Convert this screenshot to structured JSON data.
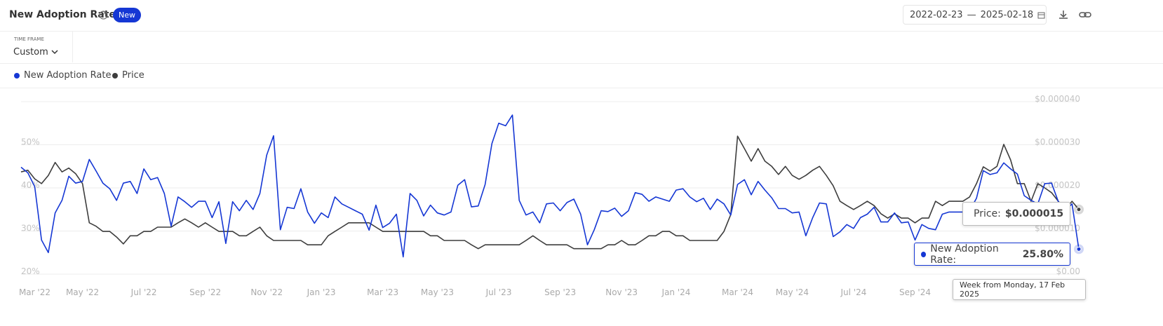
{
  "header": {
    "title": "New Adoption Rate",
    "badge": "New",
    "date_start": "2022-02-23",
    "date_separator": "—",
    "date_end": "2025-02-18"
  },
  "controls": {
    "time_frame_label": "TIME FRAME",
    "time_frame_value": "Custom"
  },
  "tooltip": {
    "price_label": "Price:",
    "price_value": "$0.000015",
    "rate_label": "New Adoption Rate:",
    "rate_value": "25.80%",
    "week": "Week from Monday, 17 Feb 2025"
  },
  "chart_data": {
    "type": "line",
    "legend": "top-left",
    "grid": true,
    "categories": [
      null,
      null,
      "Mar '22",
      null,
      null,
      null,
      null,
      null,
      null,
      "May '22",
      null,
      null,
      null,
      null,
      null,
      null,
      null,
      null,
      "Jul '22",
      null,
      null,
      null,
      null,
      null,
      null,
      null,
      null,
      "Sep '22",
      null,
      null,
      null,
      null,
      null,
      null,
      null,
      null,
      "Nov '22",
      null,
      null,
      null,
      null,
      null,
      null,
      null,
      "Jan '23",
      null,
      null,
      null,
      null,
      null,
      null,
      null,
      null,
      "Mar '23",
      null,
      null,
      null,
      null,
      null,
      null,
      null,
      "May '23",
      null,
      null,
      null,
      null,
      null,
      null,
      null,
      null,
      "Jul '23",
      null,
      null,
      null,
      null,
      null,
      null,
      null,
      null,
      "Sep '23",
      null,
      null,
      null,
      null,
      null,
      null,
      null,
      null,
      "Nov '23",
      null,
      null,
      null,
      null,
      null,
      null,
      null,
      "Jan '24",
      null,
      null,
      null,
      null,
      null,
      null,
      null,
      null,
      "Mar '24",
      null,
      null,
      null,
      null,
      null,
      null,
      null,
      "May '24",
      null,
      null,
      null,
      null,
      null,
      null,
      null,
      null,
      "Jul '24",
      null,
      null,
      null,
      null,
      null,
      null,
      null,
      null,
      "Sep '24",
      null,
      null,
      null,
      null,
      null,
      null,
      null,
      null,
      null,
      null,
      null,
      null,
      null,
      null,
      null,
      null,
      null,
      null,
      null,
      null,
      null,
      null,
      null,
      null
    ],
    "ylim": [
      20,
      60
    ],
    "yticks": [
      {
        "value": 20,
        "label": "20%"
      },
      {
        "value": 30,
        "label": "30%"
      },
      {
        "value": 40,
        "label": "40%"
      },
      {
        "value": 50,
        "label": "50%"
      }
    ],
    "y2lim": [
      0,
      4e-05
    ],
    "y2ticks": [
      {
        "value": 0,
        "label": "$0.00"
      },
      {
        "value": 1e-05,
        "label": "$0.000010"
      },
      {
        "value": 2e-05,
        "label": "$0.000020"
      },
      {
        "value": 3e-05,
        "label": "$0.000030"
      },
      {
        "value": 4e-05,
        "label": "$0.000040"
      }
    ],
    "series": [
      {
        "name": "New Adoption Rate",
        "color": "#1537d4",
        "values": [
          44.8,
          43.5,
          40.3,
          27.9,
          25.0,
          34.2,
          37.1,
          42.7,
          41.1,
          41.5,
          46.6,
          43.9,
          41.1,
          39.8,
          37.1,
          41.1,
          41.5,
          38.7,
          44.4,
          41.9,
          42.4,
          38.7,
          31.1,
          37.9,
          36.8,
          35.5,
          36.9,
          36.9,
          33.1,
          36.8,
          27.1,
          36.8,
          34.7,
          37.1,
          35.0,
          38.7,
          47.6,
          52.1,
          30.3,
          35.5,
          35.2,
          39.8,
          34.4,
          31.8,
          34.2,
          33.1,
          37.9,
          36.3,
          35.5,
          34.7,
          33.9,
          30.2,
          36.0,
          30.8,
          31.8,
          33.9,
          24.0,
          38.7,
          37.1,
          33.5,
          36.0,
          34.2,
          33.7,
          34.4,
          40.6,
          41.9,
          35.6,
          35.8,
          40.8,
          50.3,
          55.0,
          54.4,
          56.9,
          37.1,
          33.7,
          34.4,
          31.9,
          36.3,
          36.5,
          34.7,
          36.6,
          37.4,
          33.9,
          26.8,
          30.3,
          34.7,
          34.5,
          35.3,
          33.4,
          34.7,
          38.9,
          38.5,
          36.9,
          37.9,
          37.4,
          36.9,
          39.5,
          39.8,
          37.9,
          36.8,
          37.6,
          35.0,
          37.4,
          36.3,
          33.7,
          40.8,
          41.9,
          38.4,
          41.5,
          39.5,
          37.7,
          35.2,
          35.2,
          34.2,
          34.4,
          28.9,
          33.1,
          36.5,
          36.3,
          28.7,
          29.8,
          31.5,
          30.6,
          33.1,
          33.9,
          35.5,
          32.1,
          32.1,
          34.2,
          31.9,
          32.1,
          27.9,
          31.5,
          30.6,
          30.3,
          33.9,
          34.4,
          34.4,
          34.4,
          34.7,
          37.6,
          44.0,
          43.1,
          43.5,
          45.8,
          44.4,
          43.2,
          38.2,
          37.1,
          36.3,
          41.0,
          41.1,
          36.8,
          34.7,
          36.3,
          25.8
        ]
      },
      {
        "name": "Price",
        "color": "#3d3d3d",
        "axis": "y2",
        "values": [
          2.37e-05,
          2.41e-05,
          2.21e-05,
          2.1e-05,
          2.29e-05,
          2.59e-05,
          2.37e-05,
          2.46e-05,
          2.33e-05,
          2.1e-05,
          1.19e-05,
          1.11e-05,
          9.9e-06,
          9.9e-06,
          8.6e-06,
          7e-06,
          8.9e-06,
          8.9e-06,
          9.9e-06,
          9.9e-06,
          1.09e-05,
          1.09e-05,
          1.09e-05,
          1.19e-05,
          1.28e-05,
          1.19e-05,
          1.09e-05,
          1.19e-05,
          1.09e-05,
          9.9e-06,
          9.9e-06,
          9.9e-06,
          8.9e-06,
          8.9e-06,
          9.9e-06,
          1.09e-05,
          8.9e-06,
          7.8e-06,
          7.8e-06,
          7.8e-06,
          7.8e-06,
          7.8e-06,
          6.8e-06,
          6.8e-06,
          6.8e-06,
          8.9e-06,
          9.9e-06,
          1.09e-05,
          1.19e-05,
          1.19e-05,
          1.19e-05,
          1.19e-05,
          1.09e-05,
          9.9e-06,
          9.9e-06,
          9.9e-06,
          9.9e-06,
          9.9e-06,
          9.9e-06,
          9.9e-06,
          8.9e-06,
          8.9e-06,
          7.8e-06,
          7.8e-06,
          7.8e-06,
          7.8e-06,
          6.8e-06,
          5.9e-06,
          6.8e-06,
          6.8e-06,
          6.8e-06,
          6.8e-06,
          6.8e-06,
          6.8e-06,
          7.8e-06,
          8.9e-06,
          7.8e-06,
          6.8e-06,
          6.8e-06,
          6.8e-06,
          6.8e-06,
          5.9e-06,
          5.9e-06,
          5.9e-06,
          5.9e-06,
          5.9e-06,
          6.8e-06,
          6.8e-06,
          7.8e-06,
          6.8e-06,
          6.8e-06,
          7.8e-06,
          8.9e-06,
          8.9e-06,
          9.9e-06,
          9.9e-06,
          8.9e-06,
          8.9e-06,
          7.8e-06,
          7.8e-06,
          7.8e-06,
          7.8e-06,
          7.8e-06,
          9.9e-06,
          1.38e-05,
          3.2e-05,
          2.91e-05,
          2.62e-05,
          2.91e-05,
          2.62e-05,
          2.5e-05,
          2.31e-05,
          2.5e-05,
          2.29e-05,
          2.2e-05,
          2.29e-05,
          2.41e-05,
          2.5e-05,
          2.29e-05,
          2.05e-05,
          1.69e-05,
          1.59e-05,
          1.5e-05,
          1.59e-05,
          1.69e-05,
          1.59e-05,
          1.4e-05,
          1.3e-05,
          1.4e-05,
          1.3e-05,
          1.3e-05,
          1.19e-05,
          1.3e-05,
          1.3e-05,
          1.69e-05,
          1.59e-05,
          1.69e-05,
          1.69e-05,
          1.69e-05,
          1.79e-05,
          2.1e-05,
          2.49e-05,
          2.39e-05,
          2.5e-05,
          3.01e-05,
          2.65e-05,
          2.1e-05,
          2.1e-05,
          1.69e-05,
          2.1e-05,
          2e-05,
          1.89e-05,
          1.69e-05,
          1.5e-05,
          1.69e-05,
          1.5e-05
        ]
      }
    ]
  }
}
